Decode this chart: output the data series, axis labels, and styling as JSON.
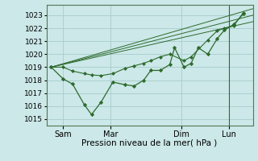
{
  "bg_color": "#cce8e8",
  "grid_color": "#a8cccc",
  "line_color": "#2d6a2d",
  "marker_color": "#2d6a2d",
  "title": "Pression niveau de la mer( hPa )",
  "ylabel_values": [
    1015,
    1016,
    1017,
    1018,
    1019,
    1020,
    1021,
    1022,
    1023
  ],
  "ylim": [
    1014.5,
    1023.8
  ],
  "x_ticks": [
    0.5,
    2.5,
    5.5,
    7.5
  ],
  "x_tick_labels": [
    "Sam",
    "Mar",
    "Dim",
    "Lun"
  ],
  "xlim": [
    -0.2,
    8.5
  ],
  "trend_lines": [
    {
      "x": [
        0,
        8.5
      ],
      "y": [
        1019.0,
        1023.5
      ]
    },
    {
      "x": [
        0,
        8.5
      ],
      "y": [
        1019.0,
        1023.0
      ]
    },
    {
      "x": [
        0,
        8.5
      ],
      "y": [
        1019.0,
        1022.5
      ]
    }
  ],
  "main_line_x": [
    0.0,
    0.5,
    0.9,
    1.4,
    1.7,
    2.1,
    2.6,
    3.1,
    3.5,
    3.9,
    4.2,
    4.6,
    5.0,
    5.2,
    5.6,
    5.9,
    6.2,
    6.6,
    7.0,
    7.3,
    7.7,
    8.1
  ],
  "main_line_y": [
    1019.0,
    1018.1,
    1017.7,
    1016.1,
    1015.35,
    1016.3,
    1017.85,
    1017.65,
    1017.55,
    1018.0,
    1018.75,
    1018.75,
    1019.2,
    1020.5,
    1019.0,
    1019.3,
    1020.5,
    1020.0,
    1021.2,
    1021.85,
    1022.3,
    1023.1
  ],
  "upper_line_x": [
    0.0,
    0.5,
    0.9,
    1.4,
    1.7,
    2.1,
    2.6,
    3.1,
    3.5,
    3.9,
    4.2,
    4.6,
    5.0,
    5.6,
    5.9,
    6.6,
    7.0,
    7.3,
    7.7,
    8.1
  ],
  "upper_line_y": [
    1019.0,
    1019.0,
    1018.7,
    1018.5,
    1018.4,
    1018.35,
    1018.5,
    1018.9,
    1019.1,
    1019.3,
    1019.5,
    1019.8,
    1020.0,
    1019.5,
    1019.8,
    1021.1,
    1021.8,
    1022.0,
    1022.2,
    1023.2
  ],
  "vline_x": [
    7.5
  ]
}
